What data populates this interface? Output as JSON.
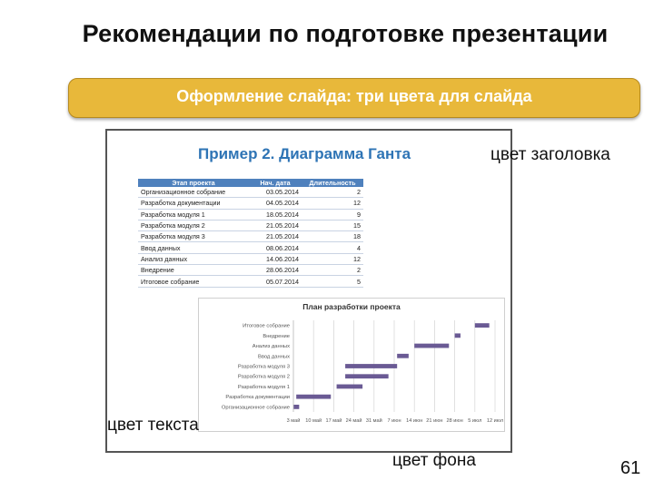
{
  "slide": {
    "title": "Рекомендации по подготовке презентации",
    "banner": "Оформление слайда: три цвета для слайда",
    "example_title": "Пример 2. Диаграмма Ганта",
    "note_header_color": "цвет заголовка",
    "note_text_color": "цвет текста",
    "note_background_color": "цвет фона",
    "page_number": "61"
  },
  "colors": {
    "banner_fill": "#e8b83a",
    "example_title": "#2e74b5",
    "table_header": "#4f81bd",
    "gantt_bar": "#6a5a94"
  },
  "table": {
    "headers": [
      "Этап проекта",
      "Нач. дата",
      "Длительность"
    ],
    "rows": [
      [
        "Организационное собрание",
        "03.05.2014",
        "2"
      ],
      [
        "Разработка документации",
        "04.05.2014",
        "12"
      ],
      [
        "Разработка модуля 1",
        "18.05.2014",
        "9"
      ],
      [
        "Разработка модуля 2",
        "21.05.2014",
        "15"
      ],
      [
        "Разработка модуля 3",
        "21.05.2014",
        "18"
      ],
      [
        "Ввод данных",
        "08.06.2014",
        "4"
      ],
      [
        "Анализ данных",
        "14.06.2014",
        "12"
      ],
      [
        "Внедрение",
        "28.06.2014",
        "2"
      ],
      [
        "Итоговое собрание",
        "05.07.2014",
        "5"
      ]
    ]
  },
  "chart_data": {
    "type": "bar",
    "title": "План разработки проекта",
    "categories": [
      "Итоговое собрание",
      "Внедрение",
      "Анализ данных",
      "Ввод данных",
      "Разработка модуля 3",
      "Разработка модуля 2",
      "Разработка модуля 1",
      "Разработка документации",
      "Организационное собрание"
    ],
    "start_days": [
      65,
      58,
      44,
      38,
      20,
      20,
      17,
      3,
      2
    ],
    "durations": [
      5,
      2,
      12,
      4,
      18,
      15,
      9,
      12,
      2
    ],
    "x_ticks": [
      "3 май",
      "10 май",
      "17 май",
      "24 май",
      "31 май",
      "7 июн",
      "14 июн",
      "21 июн",
      "28 июн",
      "5 июл",
      "12 июл"
    ],
    "x_tick_days": [
      2,
      9,
      16,
      23,
      30,
      37,
      44,
      51,
      58,
      65,
      72
    ],
    "xlim": [
      2,
      72
    ],
    "grid": true
  }
}
